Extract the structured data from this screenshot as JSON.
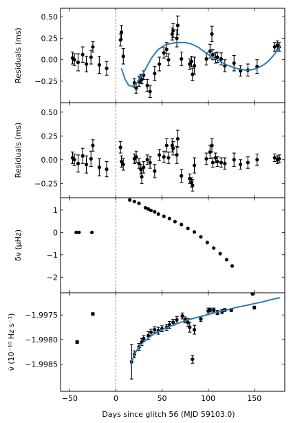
{
  "chart_data": [
    {
      "type": "scatter",
      "ylabel": "Residuals (ms)",
      "ylim": [
        -0.5,
        0.6
      ],
      "yticks": [
        0.5,
        0.25,
        0.0,
        -0.25
      ],
      "ytick_labels": [
        "0.50",
        "0.25",
        "0.00",
        "−0.25"
      ],
      "series": [
        {
          "x": [
            -47,
            -45,
            -41,
            -36,
            -32,
            -27,
            -25,
            -18,
            -10,
            5,
            6,
            8,
            20,
            22,
            25,
            27,
            28,
            30,
            34,
            37,
            42,
            47,
            52,
            55,
            57,
            61,
            62,
            66,
            67,
            71,
            80,
            82,
            83,
            85,
            98,
            102,
            104,
            105,
            108,
            110,
            114,
            118,
            128,
            135,
            143,
            153,
            172,
            175,
            177
          ],
          "y": [
            0.02,
            0.0,
            -0.03,
            0.06,
            -0.05,
            0.03,
            0.15,
            -0.06,
            -0.1,
            0.23,
            0.32,
            0.04,
            -0.27,
            -0.33,
            -0.25,
            -0.22,
            -0.23,
            -0.18,
            -0.3,
            -0.37,
            -0.16,
            -0.05,
            0.08,
            0.12,
            0.0,
            0.3,
            0.34,
            0.25,
            0.4,
            0.01,
            -0.05,
            -0.02,
            -0.17,
            -0.07,
            0.01,
            0.1,
            0.3,
            0.06,
            0.02,
            0.03,
            0.01,
            -0.07,
            -0.04,
            -0.13,
            -0.12,
            -0.08,
            0.15,
            0.17,
            0.15
          ],
          "err": [
            0.07,
            0.07,
            0.1,
            0.09,
            0.09,
            0.08,
            0.06,
            0.1,
            0.08,
            0.07,
            0.08,
            0.09,
            0.05,
            0.06,
            0.06,
            0.05,
            0.05,
            0.05,
            0.07,
            0.07,
            0.08,
            0.08,
            0.06,
            0.08,
            0.07,
            0.07,
            0.08,
            0.1,
            0.11,
            0.08,
            0.06,
            0.06,
            0.07,
            0.1,
            0.07,
            0.08,
            0.09,
            0.06,
            0.06,
            0.06,
            0.07,
            0.07,
            0.09,
            0.06,
            0.07,
            0.08,
            0.05,
            0.05,
            0.05
          ]
        },
        {
          "name": "model",
          "x": [
            6,
            10,
            14,
            18,
            22,
            26,
            30,
            34,
            38,
            42,
            46,
            50,
            55,
            60,
            65,
            70,
            75,
            80,
            85,
            90,
            95,
            100,
            105,
            110,
            115,
            120,
            125,
            130,
            135,
            140,
            145,
            150,
            155,
            160,
            165,
            170,
            175,
            178
          ],
          "y": [
            -0.1,
            -0.23,
            -0.3,
            -0.31,
            -0.28,
            -0.22,
            -0.15,
            -0.07,
            0.01,
            0.07,
            0.12,
            0.15,
            0.18,
            0.19,
            0.2,
            0.2,
            0.2,
            0.19,
            0.17,
            0.14,
            0.1,
            0.06,
            0.03,
            0.0,
            -0.03,
            -0.06,
            -0.08,
            -0.1,
            -0.11,
            -0.12,
            -0.12,
            -0.11,
            -0.09,
            -0.06,
            -0.02,
            0.04,
            0.11,
            0.16
          ]
        }
      ]
    },
    {
      "type": "scatter",
      "ylabel": "Residuals (ms)",
      "ylim": [
        -0.4,
        0.6
      ],
      "yticks": [
        0.5,
        0.25,
        0.0,
        -0.25
      ],
      "ytick_labels": [
        "0.50",
        "0.25",
        "0.00",
        "−0.25"
      ],
      "series": [
        {
          "x": [
            -47,
            -45,
            -41,
            -36,
            -32,
            -27,
            -25,
            -18,
            -10,
            5,
            6,
            8,
            20,
            22,
            25,
            27,
            28,
            30,
            34,
            37,
            42,
            47,
            52,
            55,
            57,
            61,
            62,
            66,
            67,
            71,
            80,
            82,
            83,
            85,
            98,
            102,
            104,
            105,
            108,
            110,
            114,
            118,
            128,
            135,
            143,
            153,
            172,
            175,
            177
          ],
          "y": [
            0.02,
            0.0,
            -0.04,
            0.04,
            -0.05,
            0.01,
            0.15,
            -0.08,
            -0.1,
            0.13,
            -0.02,
            -0.05,
            0.01,
            0.03,
            -0.04,
            -0.1,
            -0.18,
            -0.08,
            0.0,
            -0.03,
            -0.12,
            0.05,
            0.03,
            0.15,
            0.02,
            0.15,
            0.12,
            0.05,
            0.22,
            -0.17,
            -0.2,
            -0.24,
            -0.27,
            -0.06,
            0.01,
            0.08,
            0.15,
            -0.03,
            0.02,
            -0.02,
            -0.03,
            -0.04,
            0.0,
            -0.05,
            -0.03,
            0.0,
            0.02,
            0.0,
            0.01
          ],
          "err": [
            0.06,
            0.06,
            0.09,
            0.08,
            0.09,
            0.08,
            0.06,
            0.09,
            0.08,
            0.06,
            0.06,
            0.06,
            0.05,
            0.06,
            0.05,
            0.05,
            0.07,
            0.06,
            0.05,
            0.06,
            0.07,
            0.06,
            0.06,
            0.07,
            0.06,
            0.07,
            0.07,
            0.09,
            0.09,
            0.07,
            0.05,
            0.05,
            0.06,
            0.08,
            0.06,
            0.07,
            0.07,
            0.05,
            0.05,
            0.05,
            0.05,
            0.06,
            0.07,
            0.05,
            0.06,
            0.06,
            0.04,
            0.04,
            0.04
          ]
        }
      ]
    },
    {
      "type": "scatter",
      "ylabel": "δν (μHz)",
      "ylim": [
        -2.7,
        1.55
      ],
      "yticks": [
        1,
        0,
        -1,
        -2
      ],
      "ytick_labels": [
        "1",
        "0",
        "−1",
        "−2"
      ],
      "series": [
        {
          "x": [
            -43,
            -40,
            -26,
            15,
            20,
            25,
            32,
            35,
            38,
            42,
            46,
            52,
            58,
            64,
            71,
            78,
            85,
            92,
            99,
            106,
            113,
            120,
            126,
            148
          ],
          "y": [
            0,
            0,
            0,
            1.45,
            1.38,
            1.3,
            1.1,
            1.05,
            0.98,
            0.92,
            0.82,
            0.72,
            0.62,
            0.48,
            0.35,
            0.18,
            0.02,
            -0.2,
            -0.45,
            -0.7,
            -0.95,
            -1.22,
            -1.5,
            -2.75
          ]
        }
      ]
    },
    {
      "type": "scatter",
      "ylabel": "ν̇ (10⁻¹⁰ Hz s⁻¹)",
      "ylim": [
        -1.99905,
        -1.99705
      ],
      "yticks": [
        -1.9975,
        -1.998,
        -1.9985
      ],
      "ytick_labels": [
        "−1.9975",
        "−1.9980",
        "−1.9985"
      ],
      "series": [
        {
          "x": [
            -42,
            -25
          ],
          "y": [
            -1.99805,
            -1.99748
          ],
          "marker": "square"
        },
        {
          "x": [
            17,
            20,
            25,
            28,
            30,
            35,
            38,
            42,
            46,
            50,
            55,
            58,
            62,
            66,
            72,
            75,
            78,
            80,
            83,
            85,
            92,
            100,
            102,
            106,
            110,
            115,
            118,
            125,
            150
          ],
          "y": [
            -1.99845,
            -1.9983,
            -1.99815,
            -1.99805,
            -1.99798,
            -1.99792,
            -1.99785,
            -1.9978,
            -1.99782,
            -1.99778,
            -1.99775,
            -1.9977,
            -1.99765,
            -1.9976,
            -1.99752,
            -1.9976,
            -1.99765,
            -1.99775,
            -1.9984,
            -1.9978,
            -1.99758,
            -1.99742,
            -1.9974,
            -1.9974,
            -1.99745,
            -1.99743,
            -1.9974,
            -1.9974,
            -1.99735
          ],
          "err": [
            0.00035,
            7e-05,
            7e-05,
            7e-05,
            6e-05,
            8e-05,
            6e-05,
            6e-05,
            7e-05,
            6e-05,
            6e-05,
            7e-05,
            6e-05,
            7e-05,
            6e-05,
            6e-05,
            8e-05,
            0.0001,
            8e-05,
            9e-05,
            5e-05,
            6e-05,
            4e-05,
            4e-05,
            4e-05,
            4e-05,
            3e-05,
            3e-05,
            3e-05
          ]
        },
        {
          "name": "model",
          "x": [
            16,
            20,
            25,
            30,
            35,
            40,
            50,
            60,
            70,
            80,
            90,
            100,
            110,
            120,
            130,
            140,
            150,
            160,
            170,
            178
          ],
          "y": [
            -1.9985,
            -1.9983,
            -1.99815,
            -1.99805,
            -1.99797,
            -1.9979,
            -1.9978,
            -1.99772,
            -1.99765,
            -1.99759,
            -1.99754,
            -1.99749,
            -1.99744,
            -1.9974,
            -1.99735,
            -1.99731,
            -1.99727,
            -1.99723,
            -1.99718,
            -1.99715
          ]
        }
      ]
    }
  ],
  "shared_x": {
    "xlim": [
      -60,
      183
    ],
    "xticks": [
      -50,
      0,
      50,
      100,
      150
    ],
    "xtick_labels": [
      "−50",
      "0",
      "50",
      "100",
      "150"
    ],
    "xlabel": "Days since glitch 56 (MJD 59103.0)",
    "glitch_x": 0
  }
}
